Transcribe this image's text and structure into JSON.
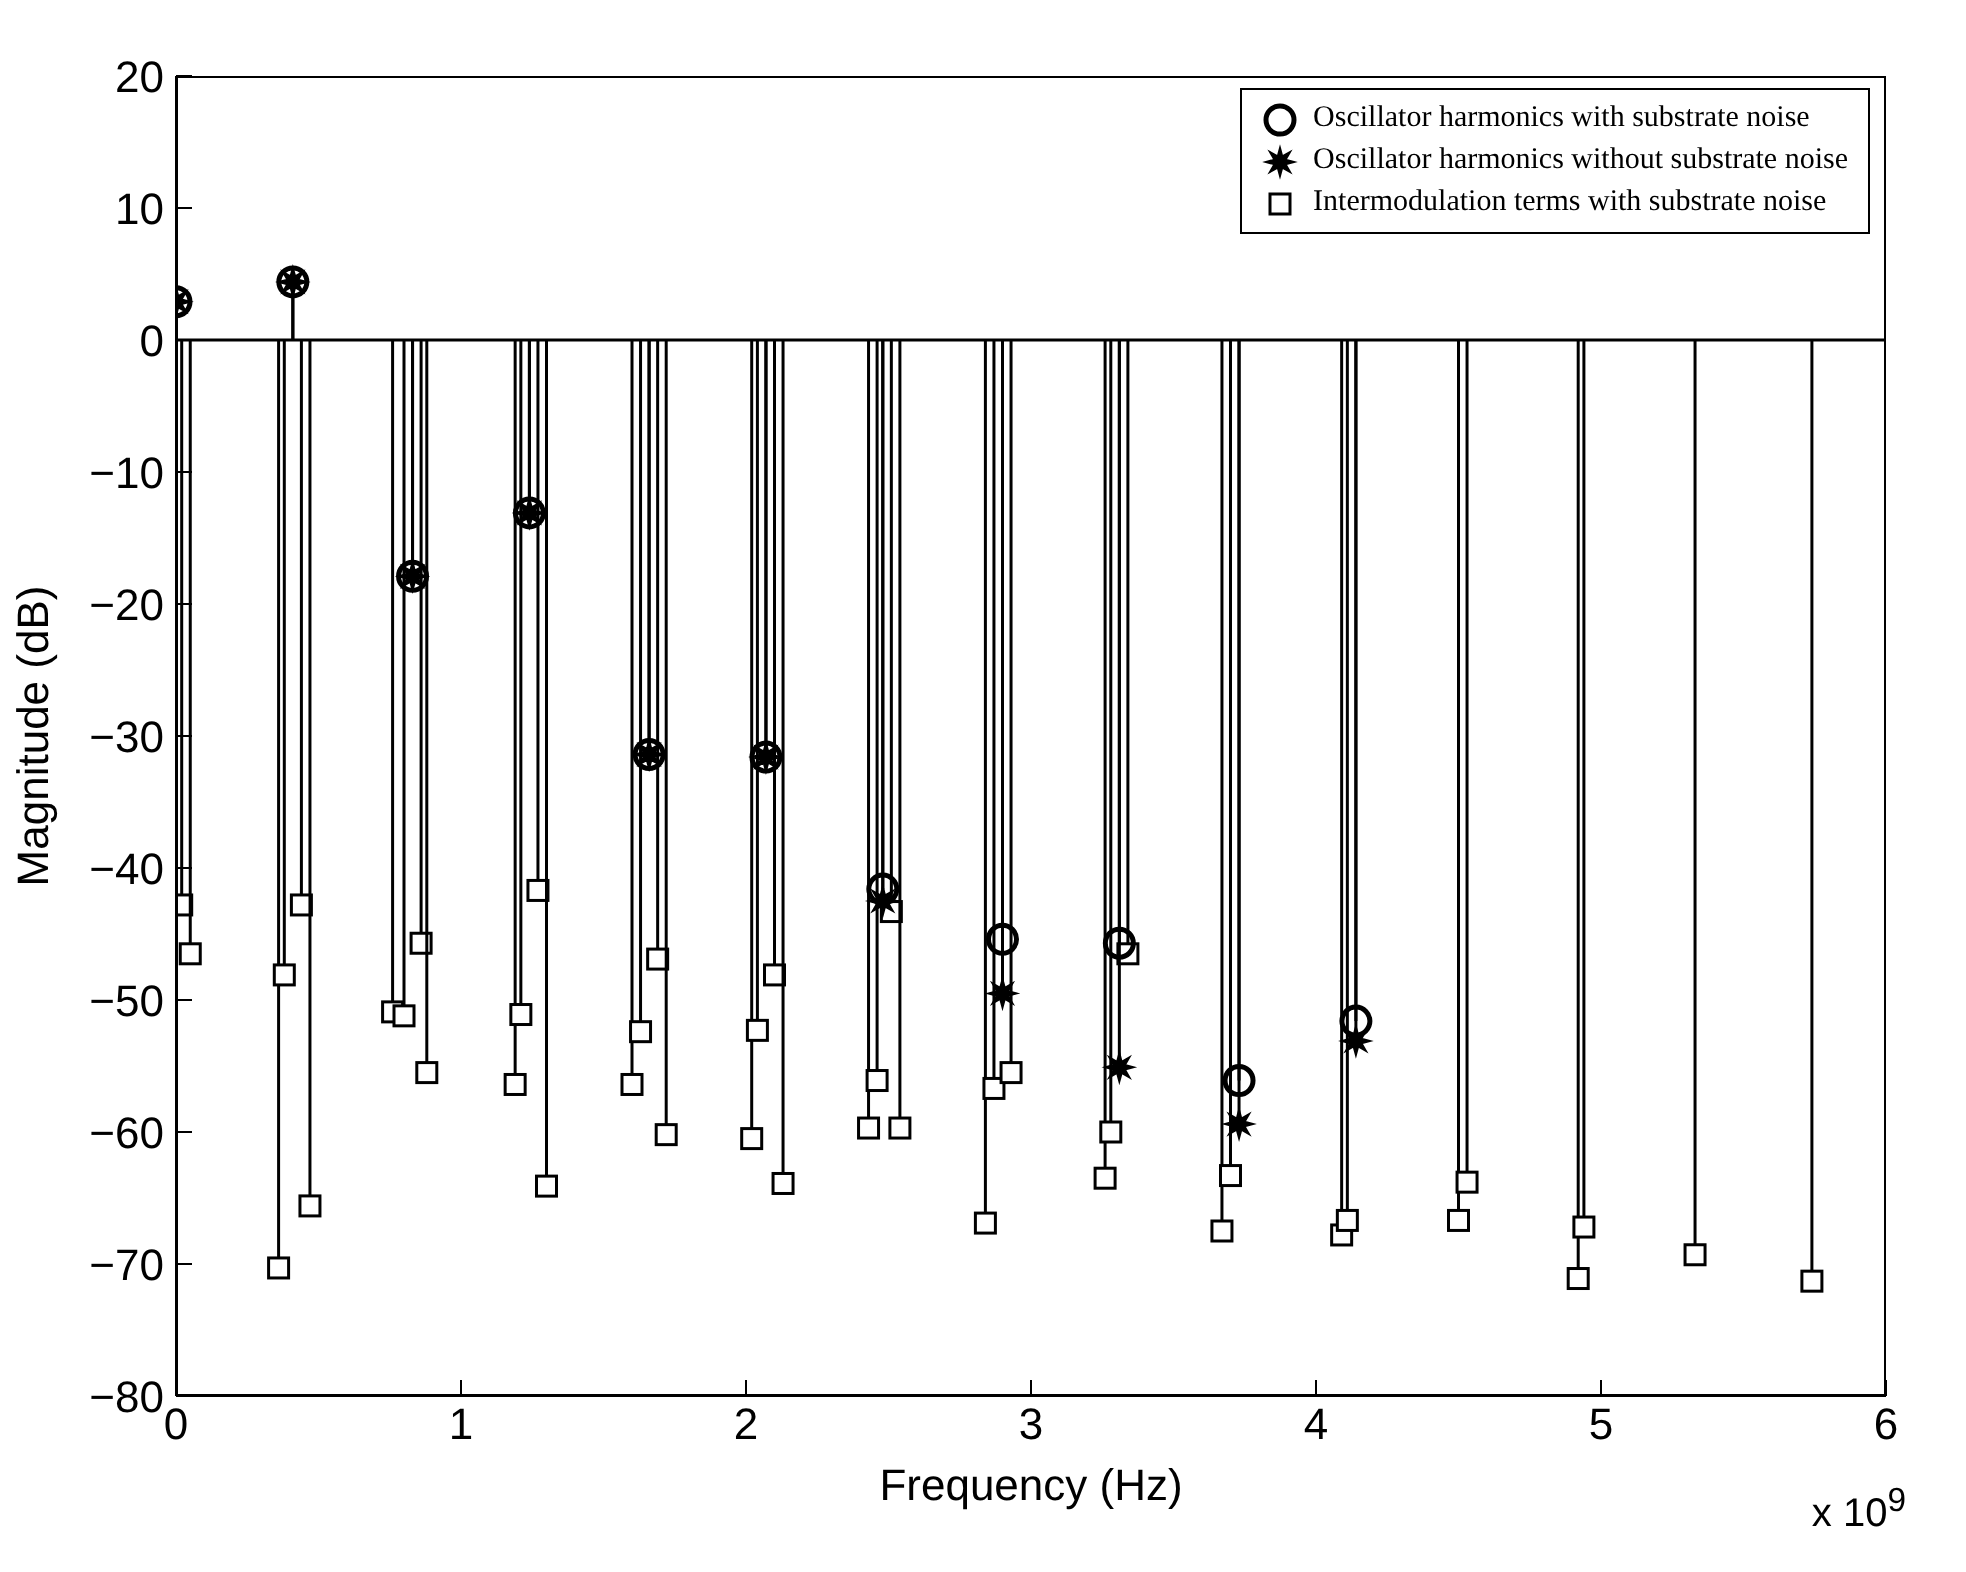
{
  "chart_data": {
    "type": "lollipop",
    "xlabel": "Frequency (Hz)",
    "ylabel": "Magnitude (dB)",
    "xlim": [
      0,
      6
    ],
    "xticks": [
      0,
      1,
      2,
      3,
      4,
      5,
      6
    ],
    "ylim": [
      -80,
      20
    ],
    "yticks": [
      -80,
      -70,
      -60,
      -50,
      -40,
      -30,
      -20,
      -10,
      0,
      10,
      20
    ],
    "grid": false,
    "legend": "top right",
    "ref_lines": [
      {
        "axis": "y",
        "value": 0,
        "color": "#000000"
      }
    ],
    "annotations": [
      "x 10$^{9}$"
    ],
    "series": [
      {
        "name": "Intermodulation  terms with substrate noise",
        "color": "#000000",
        "marker": "square",
        "x": [
          0.02,
          0.05,
          0.36,
          0.38,
          0.44,
          0.47,
          0.76,
          0.8,
          0.86,
          0.88,
          1.19,
          1.21,
          1.27,
          1.3,
          1.6,
          1.63,
          1.69,
          1.72,
          2.02,
          2.04,
          2.1,
          2.13,
          2.43,
          2.46,
          2.51,
          2.54,
          2.84,
          2.87,
          2.93,
          3.26,
          3.28,
          3.34,
          3.67,
          3.7,
          4.09,
          4.11,
          4.5,
          4.53,
          4.92,
          4.94,
          5.33,
          5.74
        ],
        "values": [
          -42.8,
          -46.5,
          -70.3,
          -48.1,
          -42.8,
          -65.6,
          -50.9,
          -51.2,
          -45.7,
          -55.5,
          -56.4,
          -51.1,
          -41.7,
          -64.1,
          -56.4,
          -52.4,
          -46.9,
          -60.2,
          -60.5,
          -52.3,
          -48.1,
          -63.9,
          -59.7,
          -56.1,
          -43.3,
          -59.7,
          -66.9,
          -56.7,
          -55.5,
          -63.5,
          -60.0,
          -46.5,
          -67.5,
          -63.3,
          -67.8,
          -66.7,
          -66.7,
          -63.8,
          -71.1,
          -67.2,
          -69.3,
          -71.3
        ]
      },
      {
        "name": "Oscillator harmonics without substrate noise",
        "color": "#000000",
        "marker": "star",
        "x": [
          0,
          0.41,
          0.83,
          1.24,
          1.66,
          2.07,
          2.48,
          2.9,
          3.31,
          3.73,
          4.14
        ],
        "values": [
          2.9,
          4.4,
          -17.9,
          -13.1,
          -31.4,
          -31.6,
          -42.5,
          -49.5,
          -55.1,
          -59.4,
          -53.1
        ]
      },
      {
        "name": "Oscillator harmonics with substrate noise",
        "color": "#000000",
        "marker": "circle",
        "x": [
          0,
          0.41,
          0.83,
          1.24,
          1.66,
          2.07,
          2.48,
          2.9,
          3.31,
          3.73,
          4.14
        ],
        "values": [
          2.9,
          4.4,
          -17.9,
          -13.1,
          -31.4,
          -31.6,
          -41.6,
          -45.4,
          -45.7,
          -56.1,
          -51.6
        ]
      }
    ]
  }
}
